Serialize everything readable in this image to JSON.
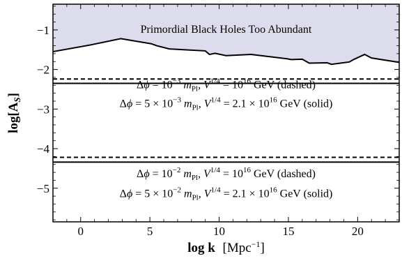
{
  "chart_data": {
    "type": "line",
    "xlabel_main": "log k",
    "xlabel_unit": "[Mpc",
    "xlabel_exp": "−1",
    "xlabel_close": "]",
    "ylabel_main": "log[A",
    "ylabel_sub": "S",
    "ylabel_close": "]",
    "xlim": [
      -2,
      23
    ],
    "ylim": [
      -5.85,
      -0.35
    ],
    "x_ticks": [
      0,
      5,
      10,
      15,
      20
    ],
    "y_ticks": [
      -1,
      -2,
      -3,
      -4,
      -5
    ],
    "x_tick_labels": [
      "0",
      "5",
      "10",
      "15",
      "20"
    ],
    "y_tick_labels": [
      "−1",
      "−2",
      "−3",
      "−4",
      "−5"
    ],
    "grid": false,
    "excluded_region_label": "Primordial Black Holes Too Abundant",
    "excluded_region_color": "#dcdcec",
    "pbh_bound": {
      "x": [
        -2,
        0.7,
        2.9,
        5.1,
        5.5,
        6.4,
        9.0,
        9.3,
        9.7,
        10.5,
        12.3,
        14.9,
        15.2,
        16.0,
        16.5,
        17.8,
        18.1,
        19.4,
        19.7,
        20.5,
        21.0,
        23
      ],
      "y": [
        -1.55,
        -1.38,
        -1.22,
        -1.35,
        -1.4,
        -1.48,
        -1.53,
        -1.62,
        -1.59,
        -1.65,
        -1.62,
        -1.73,
        -1.75,
        -1.74,
        -1.84,
        -1.83,
        -1.87,
        -1.81,
        -1.75,
        -1.62,
        -1.71,
        -1.82
      ]
    },
    "band_lines": [
      {
        "y": -2.24,
        "style": "dashed"
      },
      {
        "y": -2.35,
        "style": "solid"
      },
      {
        "y": -4.22,
        "style": "dashed"
      },
      {
        "y": -4.34,
        "style": "solid"
      }
    ],
    "annotations": [
      {
        "pre": "Δ",
        "phi": "ϕ",
        "eq": " = 10",
        "eq_exp": "−3",
        "m": " m",
        "m_sub": "Pl",
        "v": ", V",
        "v_exp": "1/4",
        "v_eq": " = 10",
        "v_exp2": "16",
        "tail": " GeV (dashed)",
        "y": -2.47
      },
      {
        "pre": "Δ",
        "phi": "ϕ",
        "eq": " = 5 × 10",
        "eq_exp": "−3",
        "m": " m",
        "m_sub": "Pl",
        "v": ", V",
        "v_exp": "1/4",
        "v_eq": " = 2.1 × 10",
        "v_exp2": "16",
        "tail": " GeV (solid)",
        "y": -2.95
      },
      {
        "pre": "Δ",
        "phi": "ϕ",
        "eq": " = 10",
        "eq_exp": "−2",
        "m": " m",
        "m_sub": "Pl",
        "v": ", V",
        "v_exp": "1/4",
        "v_eq": " = 10",
        "v_exp2": "16",
        "tail": " GeV (dashed)",
        "y": -4.72
      },
      {
        "pre": "Δ",
        "phi": "ϕ",
        "eq": " = 5 × 10",
        "eq_exp": "−2",
        "m": " m",
        "m_sub": "Pl",
        "v": ", V",
        "v_exp": "1/4",
        "v_eq": " = 2.1 × 10",
        "v_exp2": "16",
        "tail": " GeV (solid)",
        "y": -5.22
      }
    ]
  }
}
